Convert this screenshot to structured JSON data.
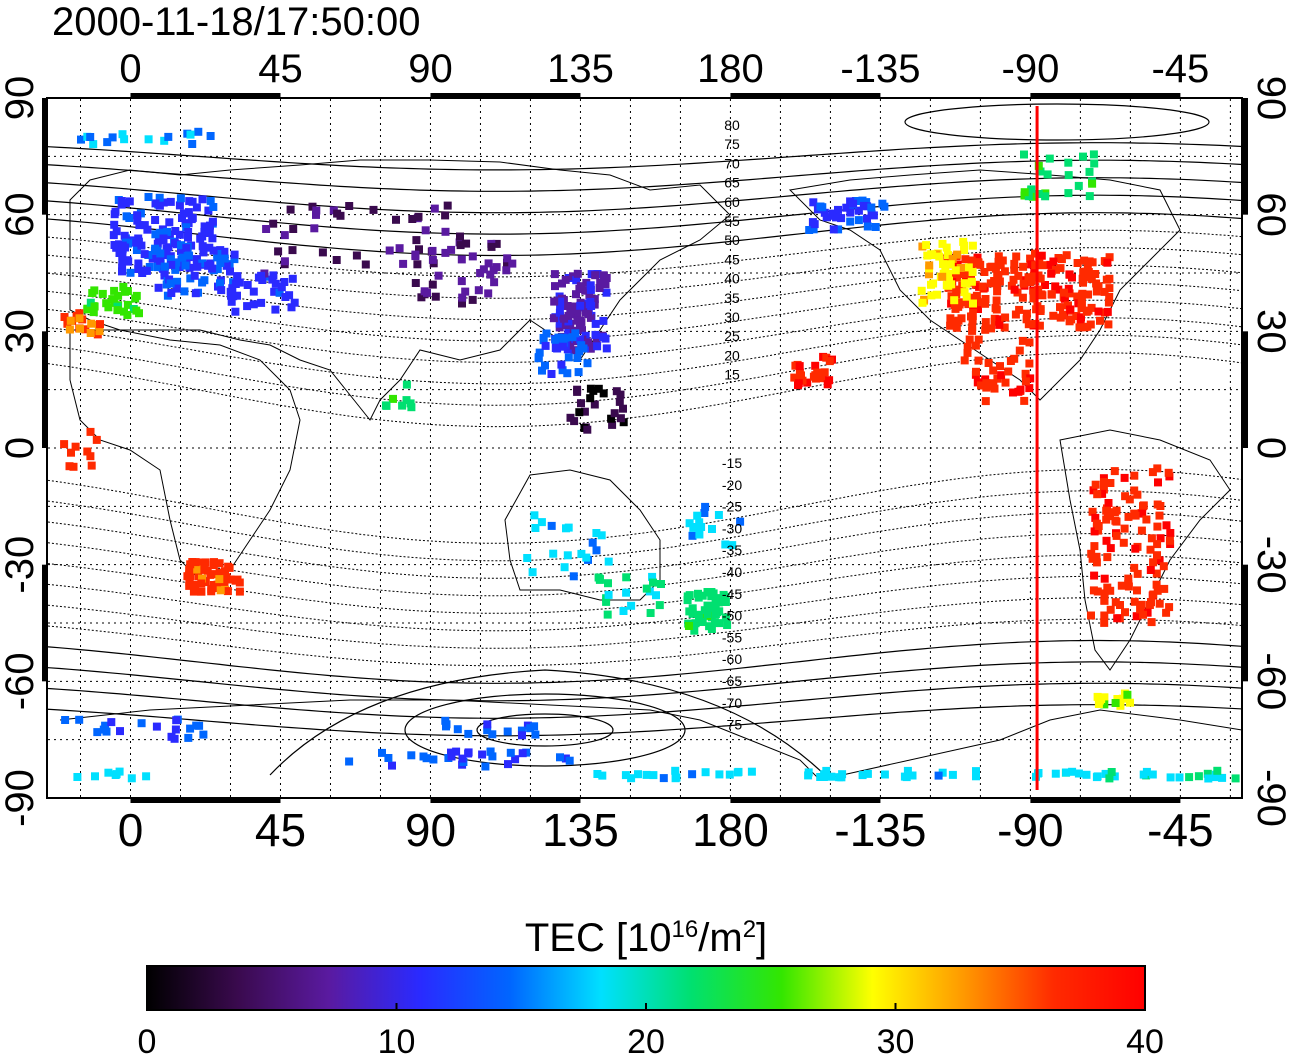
{
  "timestamp": "2000-11-18/17:50:00",
  "map": {
    "lon_ticks": [
      "0",
      "45",
      "90",
      "135",
      "180",
      "-135",
      "-90",
      "-45"
    ],
    "lat_ticks": [
      "90",
      "60",
      "30",
      "0",
      "-30",
      "-60",
      "-90"
    ],
    "mlat_labels_north": [
      "80",
      "75",
      "70",
      "65",
      "60",
      "55",
      "50",
      "45",
      "40",
      "35",
      "30",
      "25",
      "20",
      "15"
    ],
    "mlat_labels_south": [
      "-15",
      "-20",
      "-25",
      "-30",
      "-35",
      "-40",
      "-45",
      "-50",
      "-55",
      "-60",
      "-65",
      "-70",
      "-75"
    ],
    "terminator_meridian_lon": -88,
    "terminator_color": "#ff0000"
  },
  "colorbar": {
    "title_main": "TEC  [10",
    "title_exp": "16",
    "title_unit": "/m",
    "title_unit_exp": "2",
    "title_close": "]",
    "tick_labels": [
      "0",
      "10",
      "20",
      "30",
      "40"
    ],
    "range": [
      0,
      40
    ],
    "colormap": [
      "#000000",
      "#3a0a4e",
      "#5a1aa0",
      "#2a2aff",
      "#0066ff",
      "#00e0ff",
      "#00e070",
      "#33e600",
      "#ffff00",
      "#ff9900",
      "#ff2a00",
      "#ff0000"
    ]
  }
}
